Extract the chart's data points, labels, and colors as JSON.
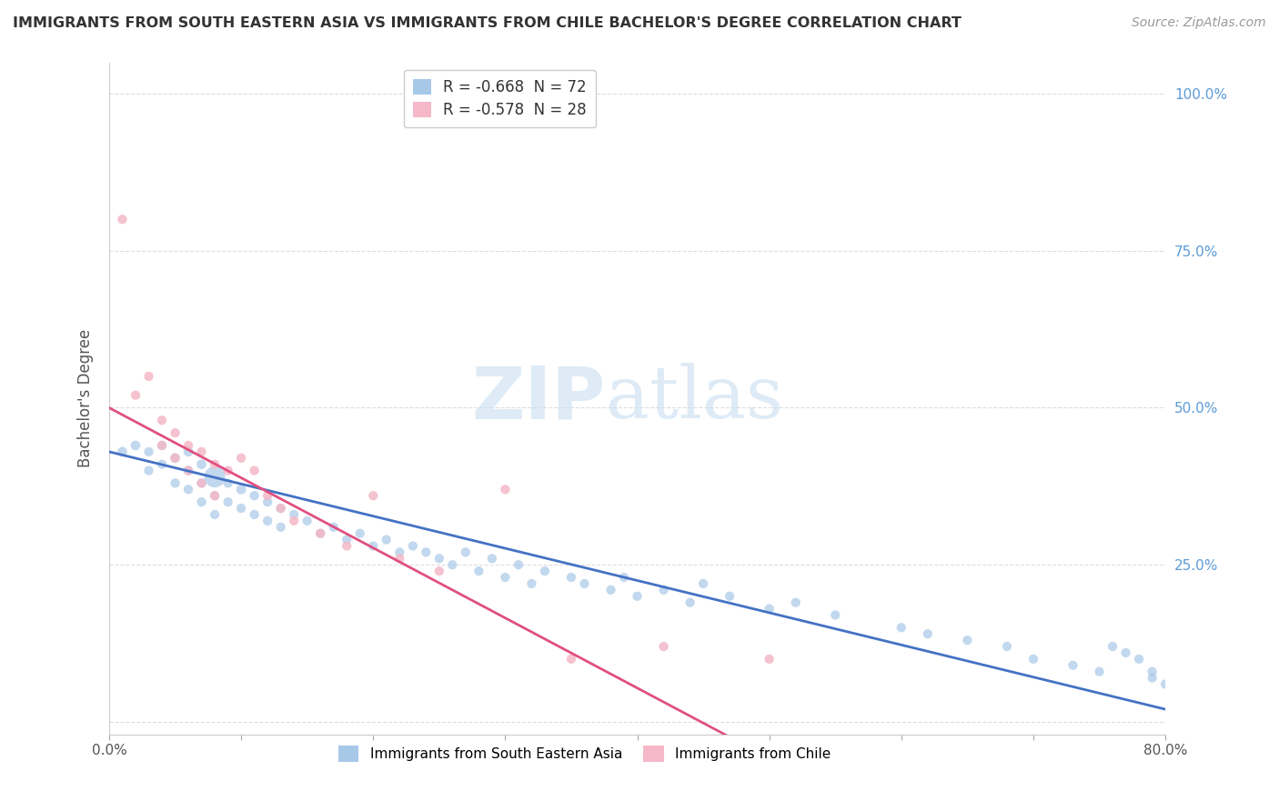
{
  "title": "IMMIGRANTS FROM SOUTH EASTERN ASIA VS IMMIGRANTS FROM CHILE BACHELOR'S DEGREE CORRELATION CHART",
  "source": "Source: ZipAtlas.com",
  "ylabel": "Bachelor's Degree",
  "legend1_label": "R = -0.668  N = 72",
  "legend2_label": "R = -0.578  N = 28",
  "legend_bottom1": "Immigrants from South Eastern Asia",
  "legend_bottom2": "Immigrants from Chile",
  "blue_color": "#a8c8e8",
  "pink_color": "#f4b8c8",
  "blue_line_color": "#4472c4",
  "pink_line_color": "#e05080",
  "watermark_zip": "ZIP",
  "watermark_atlas": "atlas",
  "xlim": [
    0.0,
    0.8
  ],
  "ylim": [
    -0.02,
    1.05
  ],
  "blue_scatter_x": [
    0.01,
    0.02,
    0.03,
    0.03,
    0.04,
    0.04,
    0.05,
    0.05,
    0.06,
    0.06,
    0.06,
    0.07,
    0.07,
    0.07,
    0.08,
    0.08,
    0.08,
    0.09,
    0.09,
    0.1,
    0.1,
    0.11,
    0.11,
    0.12,
    0.12,
    0.13,
    0.13,
    0.14,
    0.15,
    0.16,
    0.17,
    0.18,
    0.19,
    0.2,
    0.21,
    0.22,
    0.23,
    0.24,
    0.25,
    0.26,
    0.27,
    0.28,
    0.29,
    0.3,
    0.31,
    0.32,
    0.33,
    0.35,
    0.36,
    0.38,
    0.39,
    0.4,
    0.42,
    0.44,
    0.45,
    0.47,
    0.5,
    0.52,
    0.55,
    0.6,
    0.62,
    0.65,
    0.68,
    0.7,
    0.73,
    0.75,
    0.76,
    0.77,
    0.78,
    0.79,
    0.79,
    0.8
  ],
  "blue_scatter_y": [
    0.43,
    0.44,
    0.43,
    0.4,
    0.44,
    0.41,
    0.42,
    0.38,
    0.43,
    0.4,
    0.37,
    0.41,
    0.38,
    0.35,
    0.39,
    0.36,
    0.33,
    0.38,
    0.35,
    0.37,
    0.34,
    0.36,
    0.33,
    0.35,
    0.32,
    0.34,
    0.31,
    0.33,
    0.32,
    0.3,
    0.31,
    0.29,
    0.3,
    0.28,
    0.29,
    0.27,
    0.28,
    0.27,
    0.26,
    0.25,
    0.27,
    0.24,
    0.26,
    0.23,
    0.25,
    0.22,
    0.24,
    0.23,
    0.22,
    0.21,
    0.23,
    0.2,
    0.21,
    0.19,
    0.22,
    0.2,
    0.18,
    0.19,
    0.17,
    0.15,
    0.14,
    0.13,
    0.12,
    0.1,
    0.09,
    0.08,
    0.12,
    0.11,
    0.1,
    0.08,
    0.07,
    0.06
  ],
  "blue_scatter_size": [
    60,
    60,
    55,
    55,
    55,
    55,
    60,
    55,
    60,
    55,
    55,
    60,
    55,
    55,
    280,
    55,
    55,
    55,
    55,
    60,
    55,
    55,
    55,
    55,
    55,
    55,
    55,
    55,
    55,
    55,
    55,
    55,
    55,
    55,
    55,
    55,
    55,
    55,
    55,
    55,
    55,
    55,
    55,
    55,
    55,
    55,
    55,
    55,
    55,
    55,
    55,
    55,
    55,
    55,
    55,
    55,
    55,
    55,
    55,
    55,
    55,
    55,
    55,
    55,
    55,
    55,
    55,
    55,
    55,
    55,
    55,
    55
  ],
  "pink_scatter_x": [
    0.01,
    0.02,
    0.03,
    0.04,
    0.04,
    0.05,
    0.05,
    0.06,
    0.06,
    0.07,
    0.07,
    0.08,
    0.08,
    0.09,
    0.1,
    0.11,
    0.12,
    0.13,
    0.14,
    0.16,
    0.18,
    0.2,
    0.22,
    0.25,
    0.3,
    0.35,
    0.42,
    0.5
  ],
  "pink_scatter_y": [
    0.8,
    0.52,
    0.55,
    0.48,
    0.44,
    0.46,
    0.42,
    0.44,
    0.4,
    0.43,
    0.38,
    0.41,
    0.36,
    0.4,
    0.42,
    0.4,
    0.36,
    0.34,
    0.32,
    0.3,
    0.28,
    0.36,
    0.26,
    0.24,
    0.37,
    0.1,
    0.12,
    0.1
  ],
  "pink_scatter_size": [
    55,
    55,
    55,
    55,
    55,
    55,
    55,
    55,
    55,
    55,
    55,
    55,
    55,
    55,
    55,
    55,
    55,
    55,
    55,
    55,
    55,
    55,
    55,
    55,
    55,
    55,
    55,
    55
  ]
}
